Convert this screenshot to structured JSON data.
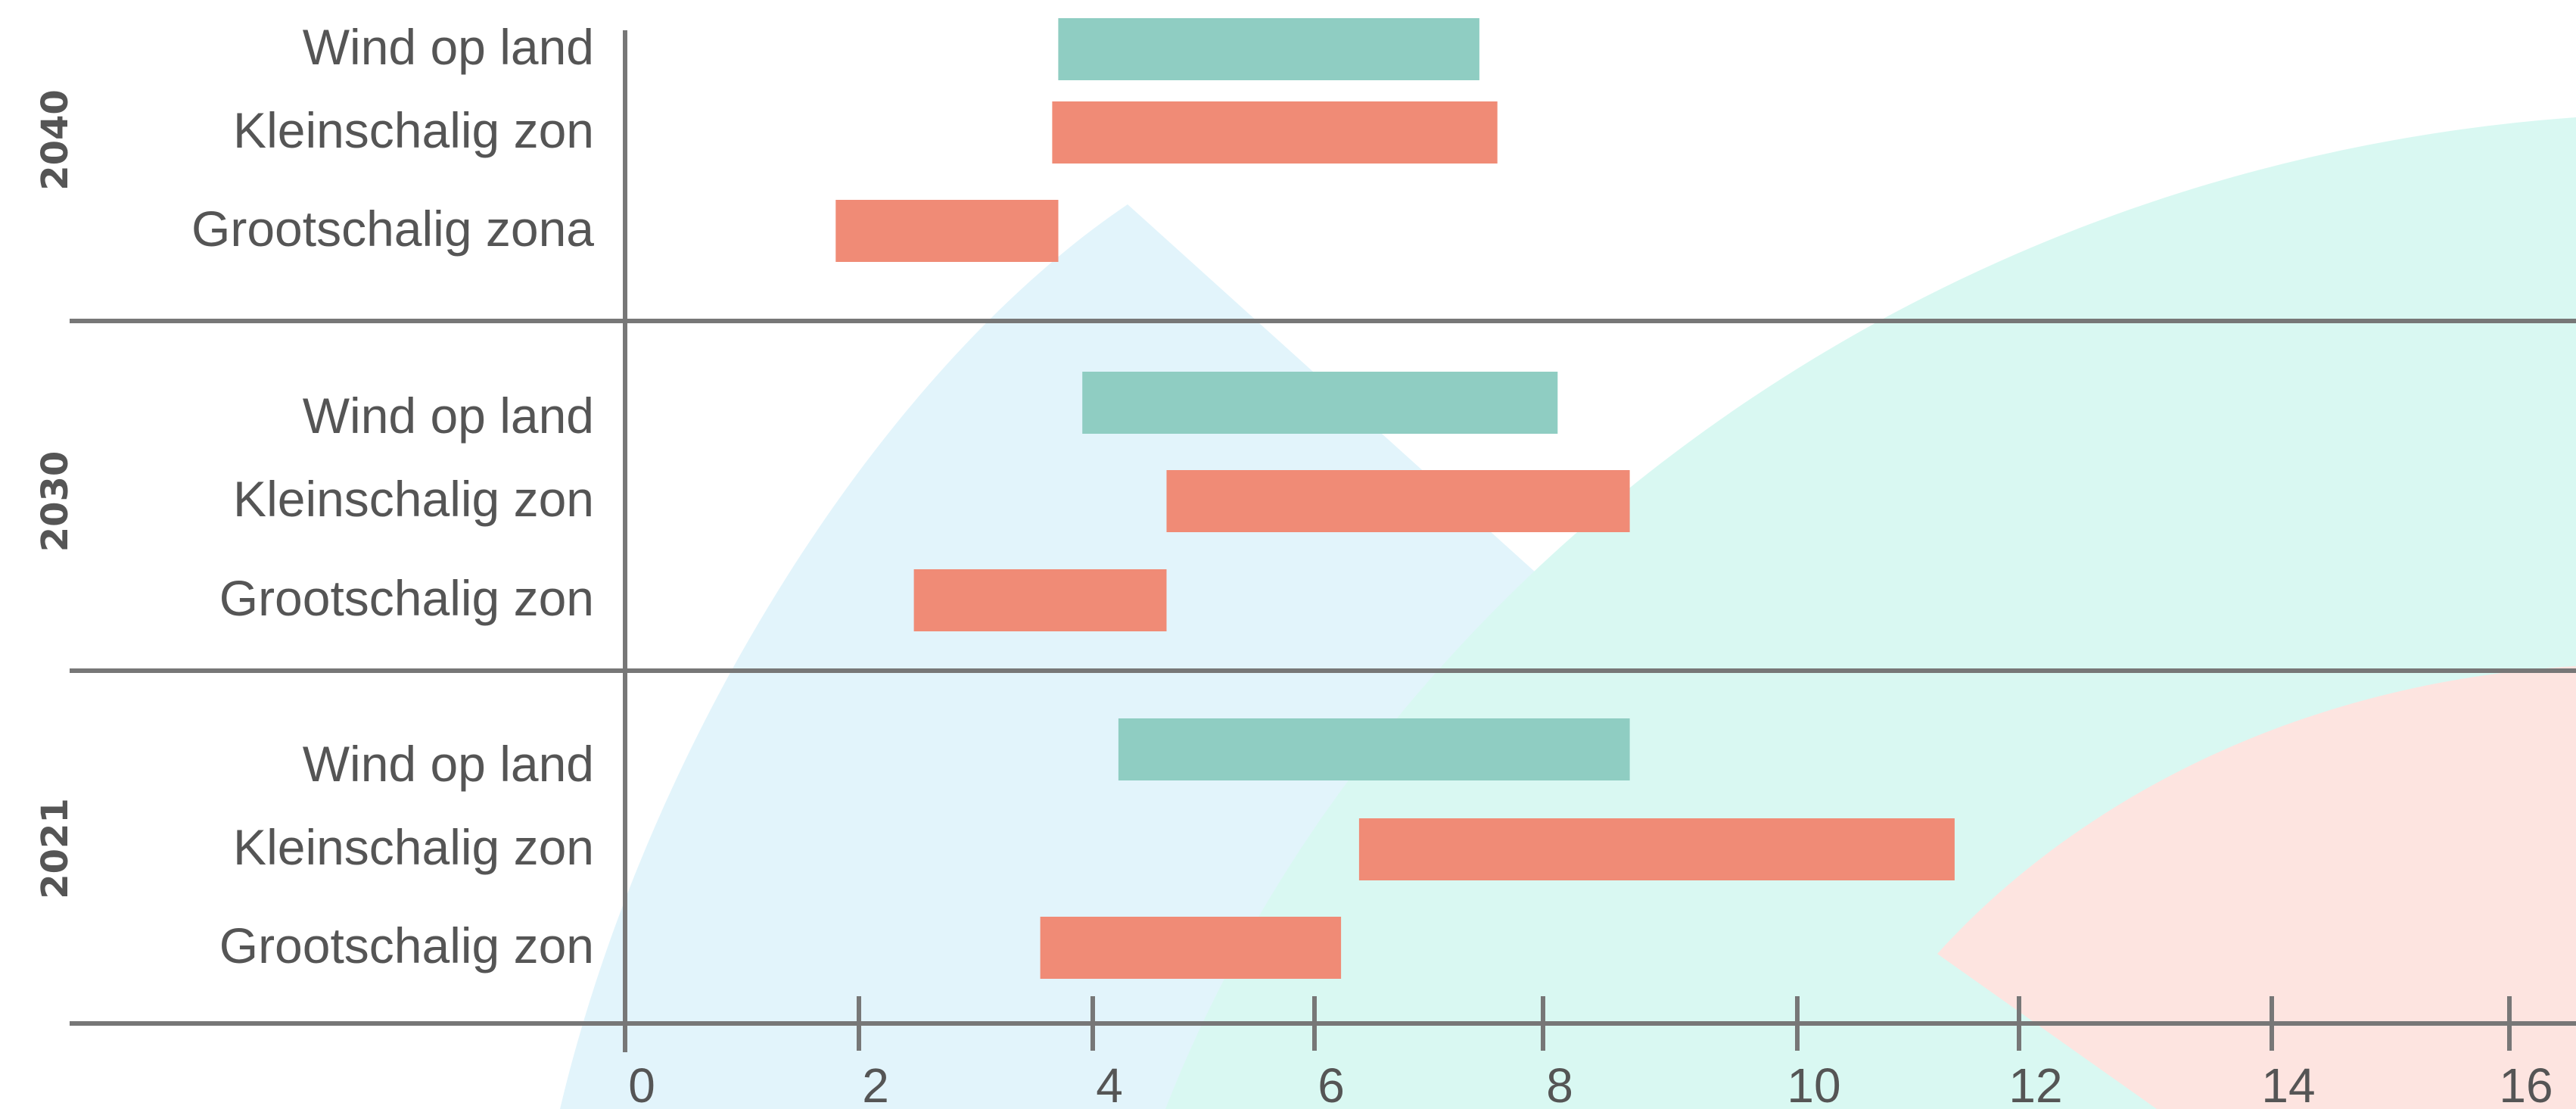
{
  "chart_data": {
    "type": "bar",
    "orientation": "horizontal-range",
    "title": "",
    "xlabel": "",
    "ylabel": "",
    "xlim": [
      0,
      16
    ],
    "x_ticks": [
      "0",
      "2",
      "4",
      "6",
      "8",
      "10",
      "12",
      "14",
      "16"
    ],
    "grid": false,
    "legend": "none",
    "colors": {
      "wind": "#8fcdc2",
      "zon": "#f08b76",
      "axis": "#777777",
      "text": "#555555",
      "bg_blue": "#e2f4fb",
      "bg_mint": "#d9f8f2",
      "bg_pink": "#fde4e0"
    },
    "groups": [
      {
        "label": "2040",
        "rows": [
          {
            "label": "Wind op land",
            "start": 3.6,
            "end": 7.1,
            "color_key": "wind"
          },
          {
            "label": "Kleinschalig zon",
            "start": 3.55,
            "end": 7.25,
            "color_key": "zon"
          },
          {
            "label": "Grootschalig zona",
            "start": 1.75,
            "end": 3.6,
            "color_key": "zon"
          }
        ]
      },
      {
        "label": "2030",
        "rows": [
          {
            "label": "Wind op land",
            "start": 3.8,
            "end": 7.75,
            "color_key": "wind"
          },
          {
            "label": "Kleinschalig zon",
            "start": 4.5,
            "end": 8.35,
            "color_key": "zon"
          },
          {
            "label": "Grootschalig zon",
            "start": 2.4,
            "end": 4.5,
            "color_key": "zon"
          }
        ]
      },
      {
        "label": "2021",
        "rows": [
          {
            "label": "Wind op land",
            "start": 4.1,
            "end": 8.35,
            "color_key": "wind"
          },
          {
            "label": "Kleinschalig zon",
            "start": 6.1,
            "end": 11.05,
            "color_key": "zon"
          },
          {
            "label": "Grootschalig zon",
            "start": 3.45,
            "end": 5.95,
            "color_key": "zon"
          }
        ]
      }
    ]
  }
}
